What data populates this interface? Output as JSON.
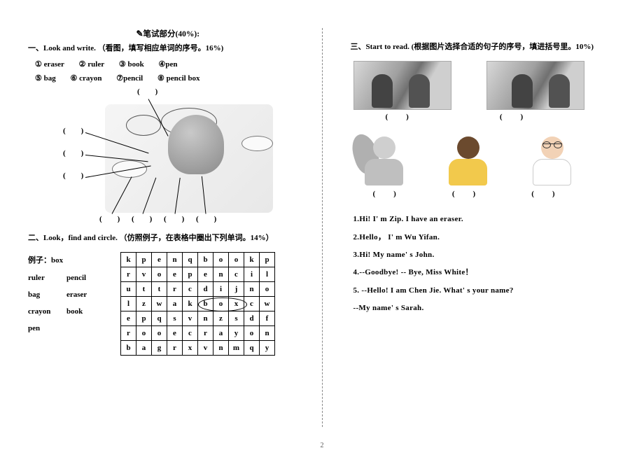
{
  "header": {
    "title": "笔试部分(40%):"
  },
  "ex1": {
    "title": "一、Look and write.  （看图，填写相应单词的序号。16%)",
    "words_row1": [
      "① eraser",
      "② ruler",
      "③ book",
      "④pen"
    ],
    "words_row2": [
      "⑤ bag",
      "⑥ crayon",
      "⑦pencil",
      "⑧ pencil box"
    ]
  },
  "ex2": {
    "title": "二、Look，find and circle.   （仿照例子，在表格中圈出下列单词。14%）",
    "example_label": "例子：box",
    "wordcol": {
      "r1a": "ruler",
      "r1b": "pencil",
      "r2a": "bag",
      "r2b": "eraser",
      "r3a": "crayon",
      "r3b": "book",
      "r4a": "pen"
    },
    "grid": [
      [
        "k",
        "p",
        "e",
        "n",
        "q",
        "b",
        "o",
        "o",
        "k",
        "p"
      ],
      [
        "r",
        "v",
        "o",
        "e",
        "p",
        "e",
        "n",
        "c",
        "i",
        "l"
      ],
      [
        "u",
        "t",
        "t",
        "r",
        "c",
        "d",
        "i",
        "j",
        "n",
        "o"
      ],
      [
        "l",
        "z",
        "w",
        "a",
        "k",
        "b",
        "o",
        "x",
        "c",
        "w"
      ],
      [
        "e",
        "p",
        "q",
        "s",
        "v",
        "n",
        "z",
        "s",
        "d",
        "f"
      ],
      [
        "r",
        "o",
        "o",
        "e",
        "c",
        "r",
        "a",
        "y",
        "o",
        "n"
      ],
      [
        "b",
        "a",
        "g",
        "r",
        "x",
        "v",
        "n",
        "m",
        "q",
        "y"
      ]
    ]
  },
  "ex3": {
    "title": "三、Start to read. (根据图片选择合适的句子的序号，填进括号里。10%)",
    "sentences": {
      "s1": "1.Hi! I' m Zip. I have an eraser.",
      "s2": "2.Hello， I' m Wu Yifan.",
      "s3": "3.Hi! My name' s John.",
      "s4": "4.--Goodbye!   -- Bye, Miss White！",
      "s5": "5. --Hello! I am Chen Jie. What' s your name?",
      "s5b": "--My name' s Sarah."
    }
  },
  "page": "2"
}
